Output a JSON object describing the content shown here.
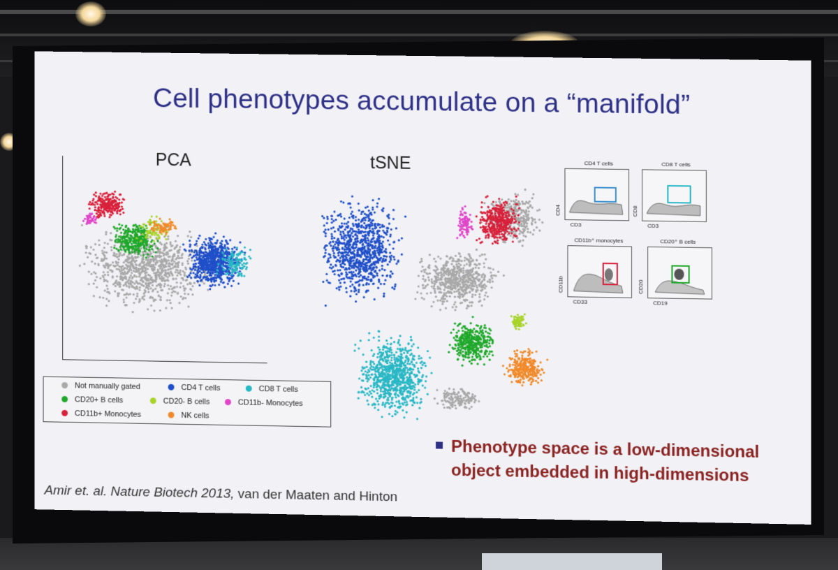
{
  "slide": {
    "title": "Cell phenotypes accumulate on a “manifold”",
    "pca_label": "PCA",
    "tsne_label": "tSNE",
    "legend": [
      {
        "label": "Not manually gated",
        "color": "#a8a8a8"
      },
      {
        "label": "CD4 T cells",
        "color": "#1f4fc8"
      },
      {
        "label": "CD8 T cells",
        "color": "#28b7c4"
      },
      {
        "label": "CD20+ B cells",
        "color": "#1fa82a"
      },
      {
        "label": "CD20- B cells",
        "color": "#a8d32a"
      },
      {
        "label": "CD11b- Monocytes",
        "color": "#e045c8"
      },
      {
        "label": "CD11b+ Monocytes",
        "color": "#d8203a"
      },
      {
        "label": "NK cells",
        "color": "#f08a2a"
      }
    ],
    "gating": [
      {
        "title": "CD4 T cells",
        "xlabel": "CD3",
        "ylabel": "CD4",
        "gate_color": "#3a8fd0"
      },
      {
        "title": "CD8 T cells",
        "xlabel": "CD3",
        "ylabel": "CD8",
        "gate_color": "#28b7c4"
      },
      {
        "title": "CD11b⁺ monocytes",
        "xlabel": "CD33",
        "ylabel": "CD11b",
        "gate_color": "#d8203a"
      },
      {
        "title": "CD20⁺ B cells",
        "xlabel": "CD19",
        "ylabel": "CD20",
        "gate_color": "#1fa82a"
      }
    ],
    "bullet_line1": "Phenotype space is a low-dimensional",
    "bullet_line2": "object embedded in high-dimensions",
    "citation_italic": "Amir  et. al. Nature Biotech 2013,",
    "citation_plain": "  van der Maaten and Hinton"
  },
  "colors": {
    "title": "#2d2f86",
    "bullet_text": "#8a2321",
    "slide_bg": "#f2f2f6"
  }
}
